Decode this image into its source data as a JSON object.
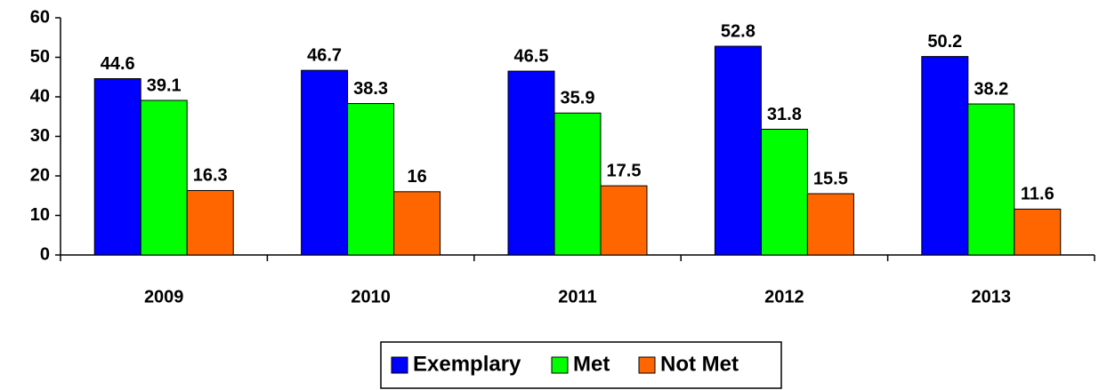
{
  "chart_data": {
    "type": "bar",
    "categories": [
      "2009",
      "2010",
      "2011",
      "2012",
      "2013"
    ],
    "series": [
      {
        "name": "Exemplary",
        "color": "#0000ff",
        "values": [
          44.6,
          46.7,
          46.5,
          52.8,
          50.2
        ]
      },
      {
        "name": "Met",
        "color": "#00ff00",
        "values": [
          39.1,
          38.3,
          35.9,
          31.8,
          38.2
        ]
      },
      {
        "name": "Not Met",
        "color": "#ff6600",
        "values": [
          16.3,
          16,
          17.5,
          15.5,
          11.6
        ]
      }
    ],
    "ylim": [
      0,
      60
    ],
    "yticks": [
      0,
      10,
      20,
      30,
      40,
      50,
      60
    ],
    "grid": false,
    "legend": "bottom"
  }
}
